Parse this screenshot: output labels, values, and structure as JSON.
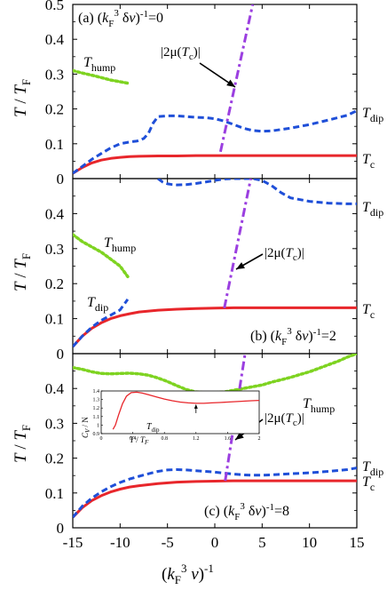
{
  "chart_data": [
    {
      "type": "line",
      "panel_label": "(a)",
      "param_label": "(kF3 δv)-1=0",
      "ylabel": "T / TF",
      "xlabel": "",
      "xlim": [
        -15,
        15
      ],
      "ylim": [
        0,
        0.5
      ],
      "y_ticks": [
        "0",
        "0.1",
        "0.2",
        "0.3",
        "0.4",
        "0.5"
      ],
      "x_ticks": [],
      "colors": {
        "Tc": "#e8262b",
        "Tdip": "#1f4fd8",
        "Thump": "#7ed321",
        "mu": "#9b3fe0"
      },
      "series": [
        {
          "name": "Tc",
          "style": "solid",
          "x": [
            -15,
            -14,
            -13,
            -12,
            -11,
            -10,
            -9,
            -8,
            -6,
            -4,
            -2,
            0,
            2,
            5,
            10,
            15
          ],
          "y": [
            0.015,
            0.032,
            0.045,
            0.053,
            0.058,
            0.061,
            0.063,
            0.064,
            0.065,
            0.065,
            0.066,
            0.066,
            0.066,
            0.066,
            0.066,
            0.066
          ]
        },
        {
          "name": "Tdip",
          "style": "dashed",
          "x": [
            -15,
            -14,
            -13,
            -12,
            -11,
            -10,
            -9,
            -8.2,
            -7.5,
            -7,
            -6.5,
            -6,
            -5,
            -4,
            -3,
            -2,
            -1,
            0,
            1,
            2,
            3,
            4,
            5,
            6,
            8,
            10,
            12,
            14,
            15
          ],
          "y": [
            0.015,
            0.035,
            0.055,
            0.072,
            0.088,
            0.1,
            0.105,
            0.108,
            0.115,
            0.13,
            0.16,
            0.178,
            0.18,
            0.18,
            0.178,
            0.176,
            0.175,
            0.172,
            0.165,
            0.155,
            0.145,
            0.138,
            0.136,
            0.137,
            0.145,
            0.155,
            0.168,
            0.182,
            0.195
          ]
        },
        {
          "name": "Thump",
          "style": "dotted",
          "x": [
            -15,
            -14,
            -13,
            -12,
            -11,
            -10,
            -9
          ],
          "y": [
            0.31,
            0.303,
            0.297,
            0.29,
            0.283,
            0.278,
            0.273
          ]
        },
        {
          "name": "|2μ(Tc)|",
          "style": "dashdot",
          "x": [
            0.6,
            4.0
          ],
          "y": [
            0.077,
            0.5
          ]
        }
      ],
      "annotations": [
        {
          "text": "|2μ(Tc)|",
          "target": "mu-curve"
        },
        {
          "text": "Thump"
        },
        {
          "text": "Tdip"
        },
        {
          "text": "Tc"
        }
      ]
    },
    {
      "type": "line",
      "panel_label": "(b)",
      "param_label": "(kF3 δv)-1=2",
      "ylabel": "T / TF",
      "xlabel": "",
      "xlim": [
        -15,
        15
      ],
      "ylim": [
        0,
        0.5
      ],
      "y_ticks": [
        "0",
        "0.1",
        "0.2",
        "0.3",
        "0.4"
      ],
      "x_ticks": [],
      "series": [
        {
          "name": "Tc",
          "style": "solid",
          "x": [
            -15,
            -14,
            -13,
            -12,
            -11,
            -10,
            -9,
            -8,
            -6,
            -4,
            -2,
            0,
            2,
            5,
            10,
            15
          ],
          "y": [
            0.02,
            0.05,
            0.072,
            0.088,
            0.1,
            0.108,
            0.114,
            0.119,
            0.124,
            0.127,
            0.129,
            0.13,
            0.131,
            0.131,
            0.131,
            0.131
          ]
        },
        {
          "name": "Tdip",
          "style": "dashed",
          "x": [
            -15,
            -14,
            -13,
            -12,
            -11,
            -10,
            -9.2
          ],
          "y": [
            0.02,
            0.05,
            0.075,
            0.095,
            0.11,
            0.125,
            0.155
          ]
        },
        {
          "name": "Tdip-upper",
          "style": "dashed",
          "x": [
            -6,
            -5.5,
            -5,
            -4.5,
            -4,
            -3,
            -2,
            -1,
            0,
            1,
            2,
            3,
            4,
            5,
            6,
            7,
            8,
            10,
            12,
            14,
            15
          ],
          "y": [
            0.5,
            0.49,
            0.485,
            0.483,
            0.482,
            0.483,
            0.486,
            0.49,
            0.495,
            0.499,
            0.5,
            0.5,
            0.5,
            0.495,
            0.48,
            0.46,
            0.445,
            0.435,
            0.43,
            0.428,
            0.428
          ]
        },
        {
          "name": "Thump",
          "style": "dotted",
          "x": [
            -15,
            -14,
            -13,
            -12,
            -11,
            -10,
            -9.2
          ],
          "y": [
            0.34,
            0.32,
            0.305,
            0.29,
            0.27,
            0.25,
            0.22
          ]
        },
        {
          "name": "|2μ(Tc)|",
          "style": "dashdot",
          "x": [
            1.0,
            3.8
          ],
          "y": [
            0.13,
            0.5
          ]
        }
      ],
      "annotations": [
        {
          "text": "|2μ(Tc)|",
          "target": "mu-curve"
        },
        {
          "text": "Thump"
        },
        {
          "text": "Tdip"
        },
        {
          "text": "Tdip"
        },
        {
          "text": "Tc"
        }
      ]
    },
    {
      "type": "line",
      "panel_label": "(c)",
      "param_label": "(kF3 δv)-1=8",
      "ylabel": "T / TF",
      "xlabel": "(kF3 v)-1",
      "xlim": [
        -15,
        15
      ],
      "ylim": [
        0,
        0.5
      ],
      "y_ticks": [
        "0",
        "0.1",
        "0.2",
        "0.3",
        "0.4"
      ],
      "x_ticks": [
        "-15",
        "-10",
        "-5",
        "0",
        "5",
        "10",
        "15"
      ],
      "series": [
        {
          "name": "Tc",
          "style": "solid",
          "x": [
            -15,
            -14,
            -13,
            -12,
            -11,
            -10,
            -9,
            -8,
            -6,
            -4,
            -2,
            0,
            2,
            5,
            10,
            15
          ],
          "y": [
            0.03,
            0.058,
            0.078,
            0.092,
            0.103,
            0.111,
            0.117,
            0.121,
            0.127,
            0.131,
            0.133,
            0.134,
            0.135,
            0.135,
            0.135,
            0.135
          ]
        },
        {
          "name": "Tdip",
          "style": "dashed",
          "x": [
            -15,
            -14,
            -13,
            -12,
            -11,
            -10,
            -9,
            -8,
            -7,
            -6,
            -5,
            -4,
            -3,
            -2,
            -1,
            0,
            1,
            2,
            3,
            4,
            5,
            6,
            8,
            10,
            12,
            14,
            15
          ],
          "y": [
            0.03,
            0.062,
            0.085,
            0.103,
            0.118,
            0.13,
            0.14,
            0.148,
            0.155,
            0.162,
            0.166,
            0.167,
            0.166,
            0.164,
            0.162,
            0.16,
            0.157,
            0.154,
            0.152,
            0.151,
            0.151,
            0.152,
            0.155,
            0.158,
            0.162,
            0.167,
            0.172
          ]
        },
        {
          "name": "Thump",
          "style": "dotted",
          "x": [
            -15,
            -14,
            -13,
            -12,
            -11,
            -10,
            -9,
            -8,
            -7,
            -6,
            -5,
            -4,
            -3,
            -2,
            -1,
            0,
            1,
            2,
            3,
            4,
            5,
            6,
            7,
            8,
            9,
            10,
            11,
            12,
            13,
            14,
            15
          ],
          "y": [
            0.46,
            0.455,
            0.448,
            0.443,
            0.442,
            0.443,
            0.444,
            0.442,
            0.438,
            0.43,
            0.42,
            0.408,
            0.397,
            0.39,
            0.388,
            0.388,
            0.39,
            0.395,
            0.4,
            0.405,
            0.41,
            0.418,
            0.425,
            0.432,
            0.44,
            0.448,
            0.458,
            0.468,
            0.478,
            0.49,
            0.5
          ]
        },
        {
          "name": "|2μ(Tc)|",
          "style": "dashdot",
          "x": [
            1.1,
            3.2
          ],
          "y": [
            0.135,
            0.5
          ]
        }
      ],
      "annotations": [
        {
          "text": "|2μ(Tc)|",
          "target": "mu-curve"
        },
        {
          "text": "Thump"
        },
        {
          "text": "Tdip"
        },
        {
          "text": "Tc"
        }
      ],
      "inset": {
        "ylabel": "Cv / N",
        "xlabel": "T / TF",
        "xlim": [
          0,
          2
        ],
        "ylim": [
          0.9,
          1.4
        ],
        "x_ticks": [
          "0",
          "0.4",
          "0.8",
          "1.2",
          "1.6",
          "2"
        ],
        "y_ticks": [
          "0.9",
          "1",
          "1.1",
          "1.2",
          "1.3",
          "1.4"
        ],
        "annotation": "Tdip",
        "series": [
          {
            "name": "Cv",
            "x": [
              0.15,
              0.18,
              0.22,
              0.27,
              0.32,
              0.38,
              0.45,
              0.52,
              0.6,
              0.7,
              0.8,
              0.9,
              1.0,
              1.1,
              1.2,
              1.3,
              1.4,
              1.5,
              1.6,
              1.7,
              1.8,
              1.9,
              2.0
            ],
            "y": [
              0.95,
              1.0,
              1.12,
              1.25,
              1.34,
              1.38,
              1.385,
              1.375,
              1.355,
              1.33,
              1.305,
              1.285,
              1.27,
              1.26,
              1.255,
              1.255,
              1.26,
              1.265,
              1.27,
              1.275,
              1.28,
              1.285,
              1.29
            ]
          }
        ]
      }
    }
  ]
}
